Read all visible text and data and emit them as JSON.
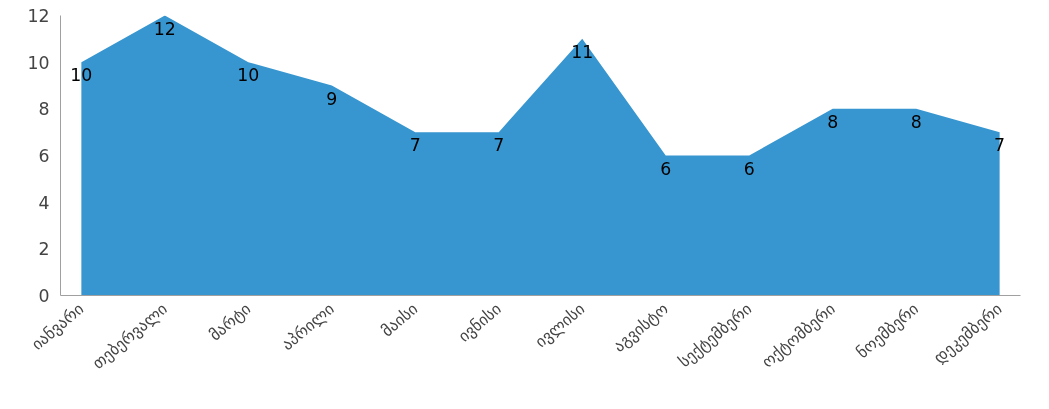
{
  "chart_data": {
    "type": "area",
    "categories": [
      "იანვარი",
      "თებერვალი",
      "მარტი",
      "აპრილი",
      "მაისი",
      "ივნისი",
      "ივლისი",
      "აგვისტო",
      "სექტემბერი",
      "ოქტომბერი",
      "ნოემბერი",
      "დეკემბერი"
    ],
    "values": [
      10,
      12,
      10,
      9,
      7,
      7,
      11,
      6,
      6,
      8,
      8,
      7
    ],
    "color": "#3796d0",
    "ylim": [
      0,
      12
    ],
    "yticks": [
      0,
      2,
      4,
      6,
      8,
      10,
      12
    ],
    "data_labels": true,
    "grid": false,
    "legend": false
  }
}
